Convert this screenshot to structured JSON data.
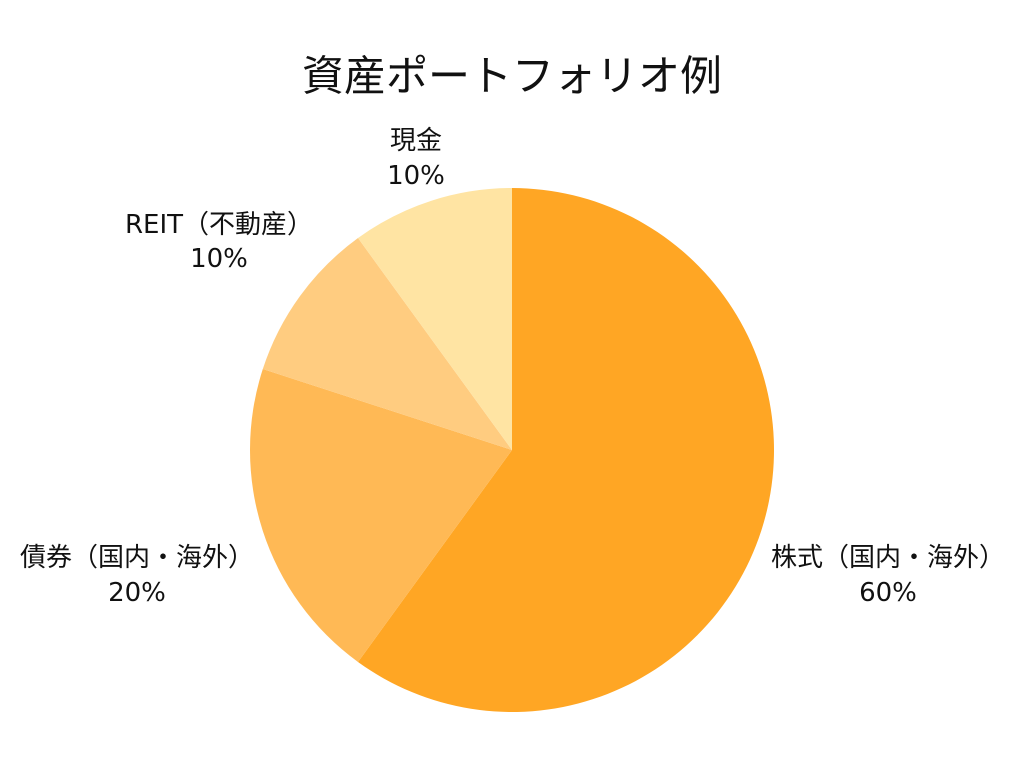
{
  "chart_data": {
    "type": "pie",
    "title": "資産ポートフォリオ例",
    "categories": [
      "株式（国内・海外）",
      "債券（国内・海外）",
      "REIT（不動産）",
      "現金"
    ],
    "values": [
      60,
      20,
      10,
      10
    ],
    "value_labels": [
      "60%",
      "20%",
      "10%",
      "10%"
    ],
    "colors": [
      "#FFA624",
      "#FFB955",
      "#FFCC80",
      "#FFE4A3"
    ]
  }
}
